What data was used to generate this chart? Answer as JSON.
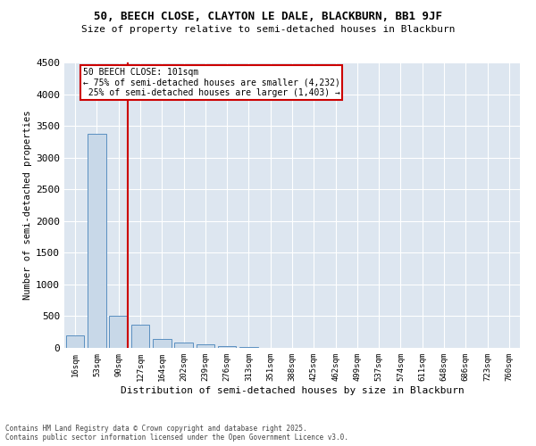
{
  "title_line1": "50, BEECH CLOSE, CLAYTON LE DALE, BLACKBURN, BB1 9JF",
  "title_line2": "Size of property relative to semi-detached houses in Blackburn",
  "xlabel": "Distribution of semi-detached houses by size in Blackburn",
  "ylabel": "Number of semi-detached properties",
  "bar_labels": [
    "16sqm",
    "53sqm",
    "90sqm",
    "127sqm",
    "164sqm",
    "202sqm",
    "239sqm",
    "276sqm",
    "313sqm",
    "351sqm",
    "388sqm",
    "425sqm",
    "462sqm",
    "499sqm",
    "537sqm",
    "574sqm",
    "611sqm",
    "648sqm",
    "686sqm",
    "723sqm",
    "760sqm"
  ],
  "bar_values": [
    195,
    3370,
    500,
    365,
    135,
    80,
    50,
    30,
    15,
    5,
    0,
    0,
    0,
    0,
    0,
    0,
    0,
    0,
    0,
    0,
    0
  ],
  "bar_color": "#c8d8e8",
  "bar_edge_color": "#5a8fc0",
  "property_label": "50 BEECH CLOSE: 101sqm",
  "pct_smaller": 75,
  "count_smaller": 4232,
  "pct_larger": 25,
  "count_larger": 1403,
  "vline_x": 2.42,
  "ylim": [
    0,
    4500
  ],
  "yticks": [
    0,
    500,
    1000,
    1500,
    2000,
    2500,
    3000,
    3500,
    4000,
    4500
  ],
  "annotation_box_color": "#cc0000",
  "background_color": "#dde6f0",
  "footer_line1": "Contains HM Land Registry data © Crown copyright and database right 2025.",
  "footer_line2": "Contains public sector information licensed under the Open Government Licence v3.0."
}
